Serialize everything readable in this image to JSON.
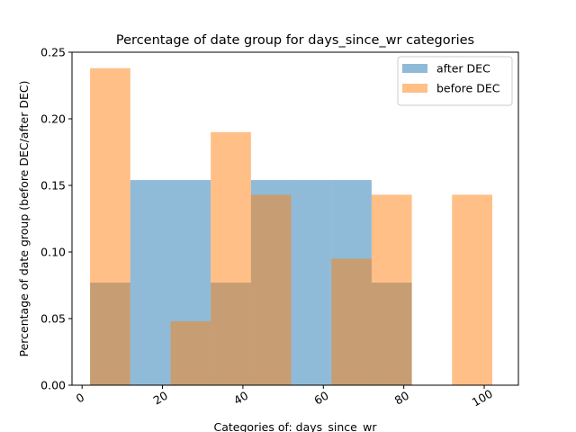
{
  "chart_data": {
    "type": "bar",
    "title": "Percentage of date group for days_since_wr categories",
    "xlabel": "Categories of: days_since_wr",
    "ylabel": "Percentage of date group (before DEC/after DEC)",
    "xlim": [
      -2.5,
      108.5
    ],
    "ylim": [
      0,
      0.25
    ],
    "xticks": [
      0,
      20,
      40,
      60,
      80,
      100
    ],
    "yticks": [
      "0.00",
      "0.05",
      "0.10",
      "0.15",
      "0.20",
      "0.25"
    ],
    "legend_position": "top-right",
    "grid": false,
    "series": [
      {
        "name": "after DEC",
        "color": "#1f77b4",
        "opacity": 0.5,
        "bins": [
          {
            "x0": 2,
            "x1": 12,
            "value": 0.077
          },
          {
            "x0": 12,
            "x1": 22,
            "value": 0.154
          },
          {
            "x0": 22,
            "x1": 32,
            "value": 0.154
          },
          {
            "x0": 32,
            "x1": 42,
            "value": 0.077
          },
          {
            "x0": 42,
            "x1": 52,
            "value": 0.154
          },
          {
            "x0": 52,
            "x1": 62,
            "value": 0.154
          },
          {
            "x0": 62,
            "x1": 72,
            "value": 0.154
          },
          {
            "x0": 72,
            "x1": 82,
            "value": 0.077
          }
        ]
      },
      {
        "name": "before DEC",
        "color": "#ff7f0e",
        "opacity": 0.5,
        "bins": [
          {
            "x0": 2,
            "x1": 12,
            "value": 0.238
          },
          {
            "x0": 22,
            "x1": 32,
            "value": 0.048
          },
          {
            "x0": 32,
            "x1": 42,
            "value": 0.19
          },
          {
            "x0": 42,
            "x1": 52,
            "value": 0.143
          },
          {
            "x0": 62,
            "x1": 72,
            "value": 0.095
          },
          {
            "x0": 72,
            "x1": 82,
            "value": 0.143
          },
          {
            "x0": 92,
            "x1": 102,
            "value": 0.143
          }
        ]
      }
    ]
  }
}
